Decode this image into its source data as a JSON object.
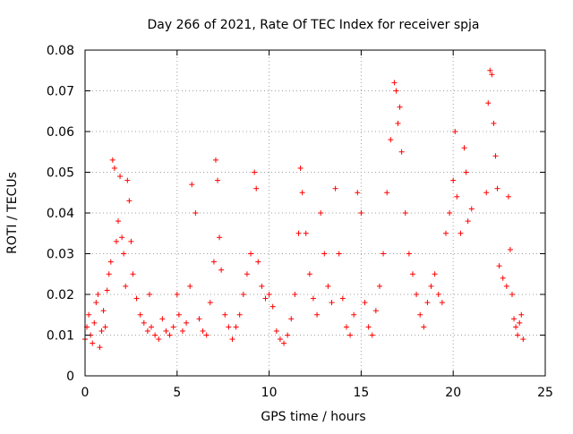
{
  "chart_data": {
    "type": "scatter",
    "title": "Day 266 of 2021, Rate Of TEC Index for receiver spja",
    "xlabel": "GPS time / hours",
    "ylabel": "ROTI / TECUs",
    "xlim": [
      0,
      25
    ],
    "ylim": [
      0,
      0.08
    ],
    "x_ticks": [
      0,
      5,
      10,
      15,
      20,
      25
    ],
    "x_tick_labels": [
      "0",
      "5",
      "10",
      "15",
      "20",
      "25"
    ],
    "y_ticks": [
      0,
      0.01,
      0.02,
      0.03,
      0.04,
      0.05,
      0.06,
      0.07,
      0.08
    ],
    "y_tick_labels": [
      "0",
      "0.01",
      "0.02",
      "0.03",
      "0.04",
      "0.05",
      "0.06",
      "0.07",
      "0.08"
    ],
    "grid": true,
    "marker": "+",
    "series": [
      {
        "name": "ROTI",
        "color": "#ff0000",
        "points": [
          [
            0.0,
            0.009
          ],
          [
            0.1,
            0.012
          ],
          [
            0.2,
            0.015
          ],
          [
            0.3,
            0.01
          ],
          [
            0.4,
            0.008
          ],
          [
            0.5,
            0.013
          ],
          [
            0.6,
            0.018
          ],
          [
            0.7,
            0.02
          ],
          [
            0.8,
            0.007
          ],
          [
            0.9,
            0.011
          ],
          [
            1.0,
            0.016
          ],
          [
            1.1,
            0.012
          ],
          [
            1.2,
            0.021
          ],
          [
            1.3,
            0.025
          ],
          [
            1.4,
            0.028
          ],
          [
            1.5,
            0.053
          ],
          [
            1.6,
            0.051
          ],
          [
            1.7,
            0.033
          ],
          [
            1.8,
            0.038
          ],
          [
            1.9,
            0.049
          ],
          [
            2.0,
            0.034
          ],
          [
            2.1,
            0.03
          ],
          [
            2.2,
            0.022
          ],
          [
            2.3,
            0.048
          ],
          [
            2.4,
            0.043
          ],
          [
            2.5,
            0.033
          ],
          [
            2.6,
            0.025
          ],
          [
            2.8,
            0.019
          ],
          [
            3.0,
            0.015
          ],
          [
            3.2,
            0.013
          ],
          [
            3.4,
            0.011
          ],
          [
            3.5,
            0.02
          ],
          [
            3.6,
            0.012
          ],
          [
            3.8,
            0.01
          ],
          [
            4.0,
            0.009
          ],
          [
            4.2,
            0.014
          ],
          [
            4.4,
            0.011
          ],
          [
            4.6,
            0.01
          ],
          [
            4.8,
            0.012
          ],
          [
            5.0,
            0.02
          ],
          [
            5.1,
            0.015
          ],
          [
            5.3,
            0.011
          ],
          [
            5.5,
            0.013
          ],
          [
            5.7,
            0.022
          ],
          [
            5.8,
            0.047
          ],
          [
            6.0,
            0.04
          ],
          [
            6.2,
            0.014
          ],
          [
            6.4,
            0.011
          ],
          [
            6.6,
            0.01
          ],
          [
            6.8,
            0.018
          ],
          [
            7.0,
            0.028
          ],
          [
            7.1,
            0.053
          ],
          [
            7.2,
            0.048
          ],
          [
            7.3,
            0.034
          ],
          [
            7.4,
            0.026
          ],
          [
            7.6,
            0.015
          ],
          [
            7.8,
            0.012
          ],
          [
            8.0,
            0.009
          ],
          [
            8.2,
            0.012
          ],
          [
            8.4,
            0.015
          ],
          [
            8.6,
            0.02
          ],
          [
            8.8,
            0.025
          ],
          [
            9.0,
            0.03
          ],
          [
            9.2,
            0.05
          ],
          [
            9.3,
            0.046
          ],
          [
            9.4,
            0.028
          ],
          [
            9.6,
            0.022
          ],
          [
            9.8,
            0.019
          ],
          [
            10.0,
            0.02
          ],
          [
            10.2,
            0.017
          ],
          [
            10.4,
            0.011
          ],
          [
            10.6,
            0.009
          ],
          [
            10.8,
            0.008
          ],
          [
            11.0,
            0.01
          ],
          [
            11.2,
            0.014
          ],
          [
            11.4,
            0.02
          ],
          [
            11.6,
            0.035
          ],
          [
            11.7,
            0.051
          ],
          [
            11.8,
            0.045
          ],
          [
            12.0,
            0.035
          ],
          [
            12.2,
            0.025
          ],
          [
            12.4,
            0.019
          ],
          [
            12.6,
            0.015
          ],
          [
            12.8,
            0.04
          ],
          [
            13.0,
            0.03
          ],
          [
            13.2,
            0.022
          ],
          [
            13.4,
            0.018
          ],
          [
            13.6,
            0.046
          ],
          [
            13.8,
            0.03
          ],
          [
            14.0,
            0.019
          ],
          [
            14.2,
            0.012
          ],
          [
            14.4,
            0.01
          ],
          [
            14.6,
            0.015
          ],
          [
            14.8,
            0.045
          ],
          [
            15.0,
            0.04
          ],
          [
            15.2,
            0.018
          ],
          [
            15.4,
            0.012
          ],
          [
            15.6,
            0.01
          ],
          [
            15.8,
            0.016
          ],
          [
            16.0,
            0.022
          ],
          [
            16.2,
            0.03
          ],
          [
            16.4,
            0.045
          ],
          [
            16.6,
            0.058
          ],
          [
            16.8,
            0.072
          ],
          [
            16.9,
            0.07
          ],
          [
            17.0,
            0.062
          ],
          [
            17.1,
            0.066
          ],
          [
            17.2,
            0.055
          ],
          [
            17.4,
            0.04
          ],
          [
            17.6,
            0.03
          ],
          [
            17.8,
            0.025
          ],
          [
            18.0,
            0.02
          ],
          [
            18.2,
            0.015
          ],
          [
            18.4,
            0.012
          ],
          [
            18.6,
            0.018
          ],
          [
            18.8,
            0.022
          ],
          [
            19.0,
            0.025
          ],
          [
            19.2,
            0.02
          ],
          [
            19.4,
            0.018
          ],
          [
            19.6,
            0.035
          ],
          [
            19.8,
            0.04
          ],
          [
            20.0,
            0.048
          ],
          [
            20.1,
            0.06
          ],
          [
            20.2,
            0.044
          ],
          [
            20.4,
            0.035
          ],
          [
            20.6,
            0.056
          ],
          [
            20.7,
            0.05
          ],
          [
            20.8,
            0.038
          ],
          [
            21.0,
            0.041
          ],
          [
            21.8,
            0.045
          ],
          [
            21.9,
            0.067
          ],
          [
            22.0,
            0.075
          ],
          [
            22.1,
            0.074
          ],
          [
            22.2,
            0.062
          ],
          [
            22.3,
            0.054
          ],
          [
            22.4,
            0.046
          ],
          [
            22.5,
            0.027
          ],
          [
            22.7,
            0.024
          ],
          [
            22.9,
            0.022
          ],
          [
            23.0,
            0.044
          ],
          [
            23.1,
            0.031
          ],
          [
            23.2,
            0.02
          ],
          [
            23.3,
            0.014
          ],
          [
            23.4,
            0.012
          ],
          [
            23.5,
            0.01
          ],
          [
            23.6,
            0.013
          ],
          [
            23.7,
            0.015
          ],
          [
            23.8,
            0.009
          ]
        ]
      }
    ]
  }
}
